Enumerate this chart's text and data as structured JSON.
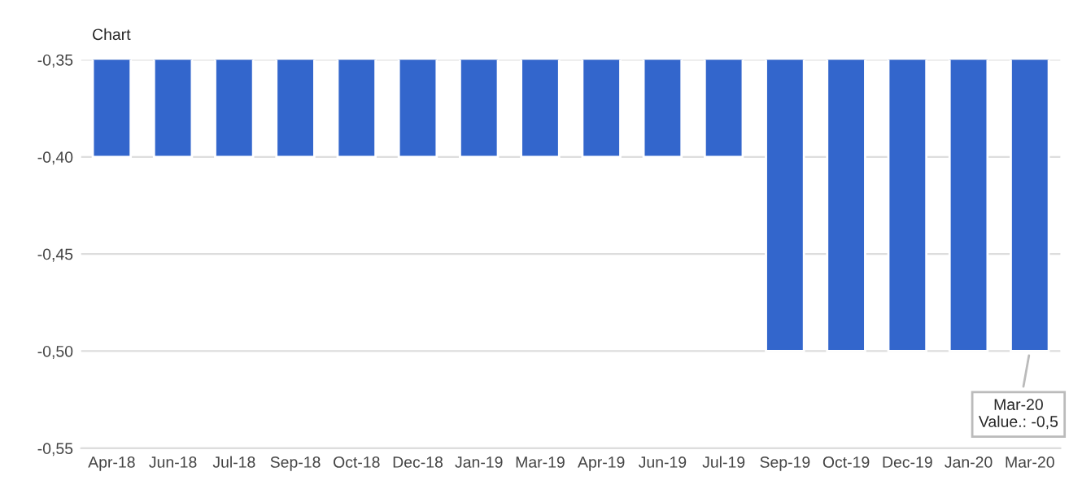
{
  "chart_data": {
    "type": "bar",
    "title": "Chart",
    "categories": [
      "Apr-18",
      "Jun-18",
      "Jul-18",
      "Sep-18",
      "Oct-18",
      "Dec-18",
      "Jan-19",
      "Mar-19",
      "Apr-19",
      "Jun-19",
      "Jul-19",
      "Sep-19",
      "Oct-19",
      "Dec-19",
      "Jan-20",
      "Mar-20"
    ],
    "values": [
      -0.4,
      -0.4,
      -0.4,
      -0.4,
      -0.4,
      -0.4,
      -0.4,
      -0.4,
      -0.4,
      -0.4,
      -0.4,
      -0.5,
      -0.5,
      -0.5,
      -0.5,
      -0.5
    ],
    "color": "#3366cc",
    "ylim": [
      -0.55,
      -0.35
    ],
    "yticks": [
      {
        "value": -0.55,
        "label": "-0,55"
      },
      {
        "value": -0.5,
        "label": "-0,50"
      },
      {
        "value": -0.45,
        "label": "-0,45"
      },
      {
        "value": -0.4,
        "label": "-0,40"
      },
      {
        "value": -0.35,
        "label": "-0,35"
      }
    ],
    "grid": "y",
    "annotations": [
      {
        "text": "Mar-20\nValue.: -0,5",
        "x": "Mar-20",
        "y": -0.5
      }
    ]
  }
}
